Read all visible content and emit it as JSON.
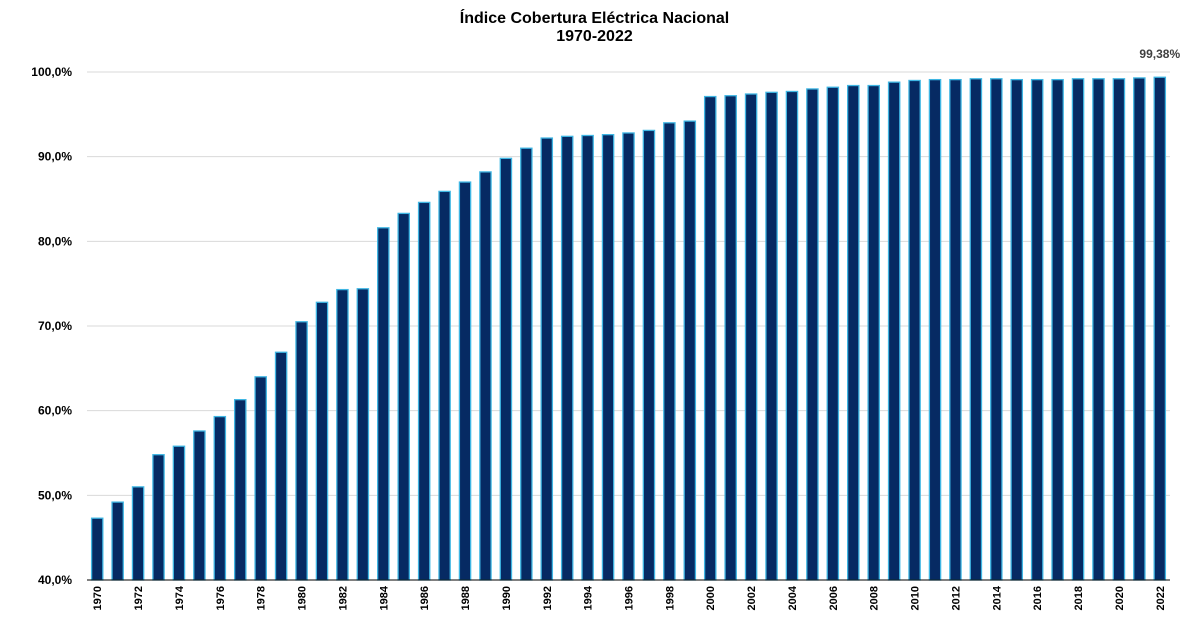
{
  "chart_data": {
    "type": "bar",
    "title": "Índice Cobertura Eléctrica Nacional",
    "subtitle": "1970-2022",
    "xlabel": "",
    "ylabel": "",
    "ylim": [
      40,
      100
    ],
    "y_ticks": [
      "40,0%",
      "50,0%",
      "60,0%",
      "70,0%",
      "80,0%",
      "90,0%",
      "100,0%"
    ],
    "y_tick_values": [
      40,
      50,
      60,
      70,
      80,
      90,
      100
    ],
    "grid": true,
    "categories": [
      "1970",
      "1971",
      "1972",
      "1973",
      "1974",
      "1975",
      "1976",
      "1977",
      "1978",
      "1979",
      "1980",
      "1981",
      "1982",
      "1983",
      "1984",
      "1985",
      "1986",
      "1987",
      "1988",
      "1989",
      "1990",
      "1991",
      "1992",
      "1993",
      "1994",
      "1995",
      "1996",
      "1997",
      "1998",
      "1999",
      "2000",
      "2001",
      "2002",
      "2003",
      "2004",
      "2005",
      "2006",
      "2007",
      "2008",
      "2009",
      "2010",
      "2011",
      "2012",
      "2013",
      "2014",
      "2015",
      "2016",
      "2017",
      "2018",
      "2019",
      "2020",
      "2021",
      "2022"
    ],
    "x_tick_labels": [
      "1970",
      "",
      "1972",
      "",
      "1974",
      "",
      "1976",
      "",
      "1978",
      "",
      "1980",
      "",
      "1982",
      "",
      "1984",
      "",
      "1986",
      "",
      "1988",
      "",
      "1990",
      "",
      "1992",
      "",
      "1994",
      "",
      "1996",
      "",
      "1998",
      "",
      "2000",
      "",
      "2002",
      "",
      "2004",
      "",
      "2006",
      "",
      "2008",
      "",
      "2010",
      "",
      "2012",
      "",
      "2014",
      "",
      "2016",
      "",
      "2018",
      "",
      "2020",
      "",
      "2022"
    ],
    "values": [
      47.3,
      49.2,
      51.0,
      54.8,
      55.8,
      57.6,
      59.3,
      61.3,
      64.0,
      66.9,
      70.5,
      72.8,
      74.3,
      74.4,
      81.6,
      83.3,
      84.6,
      85.9,
      87.0,
      88.2,
      89.8,
      91.0,
      92.2,
      92.4,
      92.5,
      92.6,
      92.8,
      93.1,
      94.0,
      94.2,
      97.1,
      97.2,
      97.4,
      97.6,
      97.7,
      98.0,
      98.2,
      98.4,
      98.4,
      98.8,
      99.0,
      99.1,
      99.1,
      99.2,
      99.2,
      99.1,
      99.1,
      99.1,
      99.2,
      99.2,
      99.2,
      99.3,
      99.38
    ],
    "annotation": {
      "label": "99,38%",
      "category": "2022"
    },
    "colors": {
      "bar_fill": "#062a63",
      "bar_edge": "#3fb6e3",
      "grid": "#d9d9d9",
      "axis": "#000000",
      "text": "#000000",
      "annotation_text": "#404040"
    }
  }
}
